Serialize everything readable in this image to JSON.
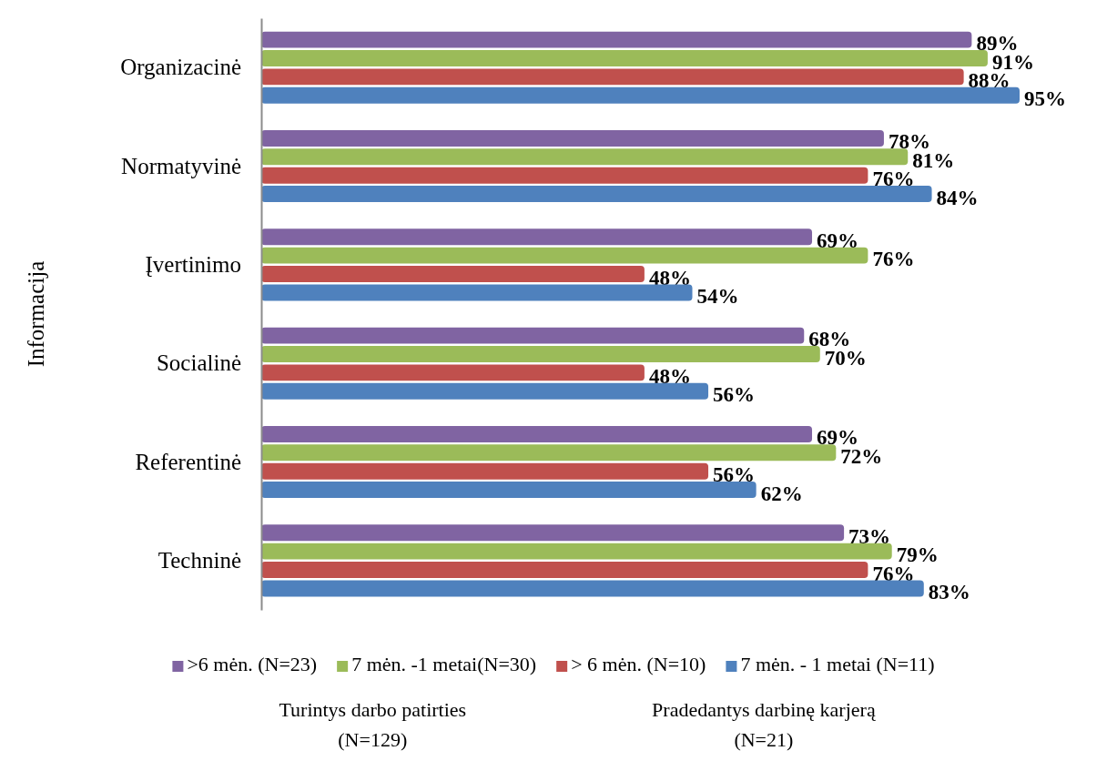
{
  "chart_data": {
    "type": "bar",
    "orientation": "horizontal",
    "ylabel": "Informacija",
    "tick_labels": "y",
    "legend": "bottom",
    "categories": [
      "Organizacinė",
      "Normatyvinė",
      "Įvertinimo",
      "Socialinė",
      "Referentinė",
      "Techninė"
    ],
    "series": [
      {
        "name": ">6 mėn. (N=23)",
        "color": "#8064a2",
        "values": [
          89,
          78,
          69,
          68,
          69,
          73
        ],
        "value_labels": [
          "89%",
          "78%",
          "69%",
          "68%",
          "69%",
          "73%"
        ]
      },
      {
        "name": "7 mėn. -1 metai(N=30)",
        "color": "#9bbb59",
        "values": [
          91,
          81,
          76,
          70,
          72,
          79
        ],
        "value_labels": [
          "91%",
          "81%",
          "76%",
          "70%",
          "72%",
          "79%"
        ]
      },
      {
        "name": "> 6 mėn. (N=10)",
        "color": "#c0504d",
        "values": [
          88,
          76,
          48,
          48,
          56,
          76
        ],
        "value_labels": [
          "88%",
          "76%",
          "48%",
          "48%",
          "56%",
          "76%"
        ]
      },
      {
        "name": "7 mėn. - 1 metai (N=11)",
        "color": "#4f81bd",
        "values": [
          95,
          84,
          54,
          56,
          62,
          83
        ],
        "value_labels": [
          "95%",
          "84%",
          "54%",
          "56%",
          "62%",
          "83%"
        ]
      }
    ],
    "annotations": [
      "Turintys darbo patirties\n(N=129)",
      "Pradedantys darbinę karjerą\n(N=21)"
    ]
  }
}
